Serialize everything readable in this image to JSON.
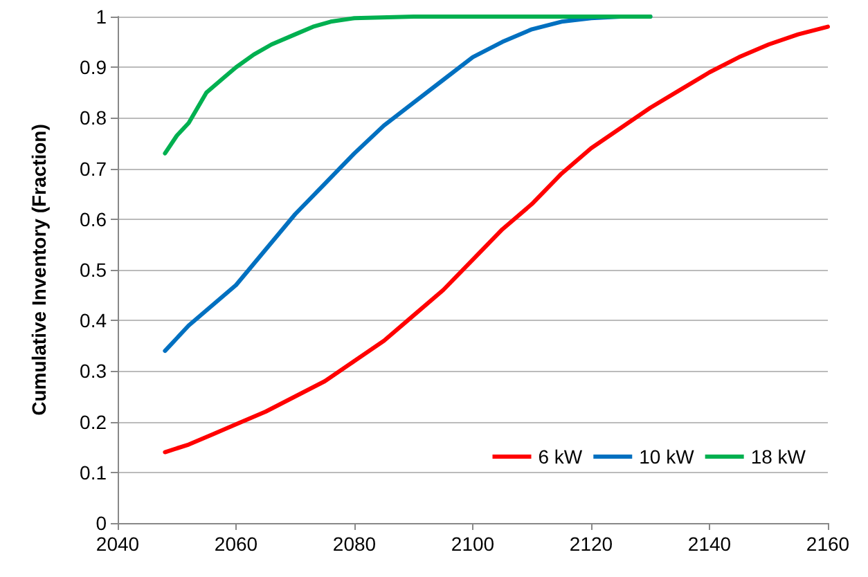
{
  "chart_data": {
    "type": "line",
    "ylabel": "Cumulative Inventory (Fraction)",
    "xlim": [
      2040,
      2160
    ],
    "xticks": [
      2040,
      2060,
      2080,
      2100,
      2120,
      2140,
      2160
    ],
    "ylim": [
      0,
      1
    ],
    "yticks": [
      0,
      0.1,
      0.2,
      0.3,
      0.4,
      0.5,
      0.6,
      0.7,
      0.8,
      0.9,
      1
    ],
    "grid": "y",
    "legend": "bottom right",
    "marker": "none",
    "line_style": "solid",
    "series": [
      {
        "name": "6 kW",
        "color": "#ff0000",
        "x": [
          2048,
          2052,
          2056,
          2060,
          2065,
          2070,
          2075,
          2080,
          2085,
          2090,
          2095,
          2100,
          2105,
          2110,
          2115,
          2120,
          2125,
          2130,
          2135,
          2140,
          2145,
          2150,
          2155,
          2160
        ],
        "values": [
          0.14,
          0.155,
          0.175,
          0.195,
          0.22,
          0.25,
          0.28,
          0.32,
          0.36,
          0.41,
          0.46,
          0.52,
          0.58,
          0.63,
          0.69,
          0.74,
          0.78,
          0.82,
          0.855,
          0.89,
          0.92,
          0.945,
          0.965,
          0.98
        ]
      },
      {
        "name": "10 kW",
        "color": "#0070c0",
        "x": [
          2048,
          2052,
          2056,
          2060,
          2065,
          2070,
          2075,
          2080,
          2085,
          2090,
          2095,
          2100,
          2105,
          2110,
          2115,
          2120,
          2125,
          2130
        ],
        "values": [
          0.34,
          0.39,
          0.43,
          0.47,
          0.54,
          0.61,
          0.67,
          0.73,
          0.785,
          0.83,
          0.875,
          0.92,
          0.95,
          0.975,
          0.99,
          0.997,
          1,
          1
        ]
      },
      {
        "name": "18 kW",
        "color": "#00b050",
        "x": [
          2048,
          2050,
          2052,
          2055,
          2058,
          2060,
          2063,
          2066,
          2070,
          2073,
          2076,
          2080,
          2090,
          2100,
          2110,
          2120,
          2130
        ],
        "values": [
          0.73,
          0.765,
          0.79,
          0.85,
          0.88,
          0.9,
          0.925,
          0.945,
          0.965,
          0.98,
          0.99,
          0.997,
          1,
          1,
          1,
          1,
          1
        ]
      }
    ]
  }
}
